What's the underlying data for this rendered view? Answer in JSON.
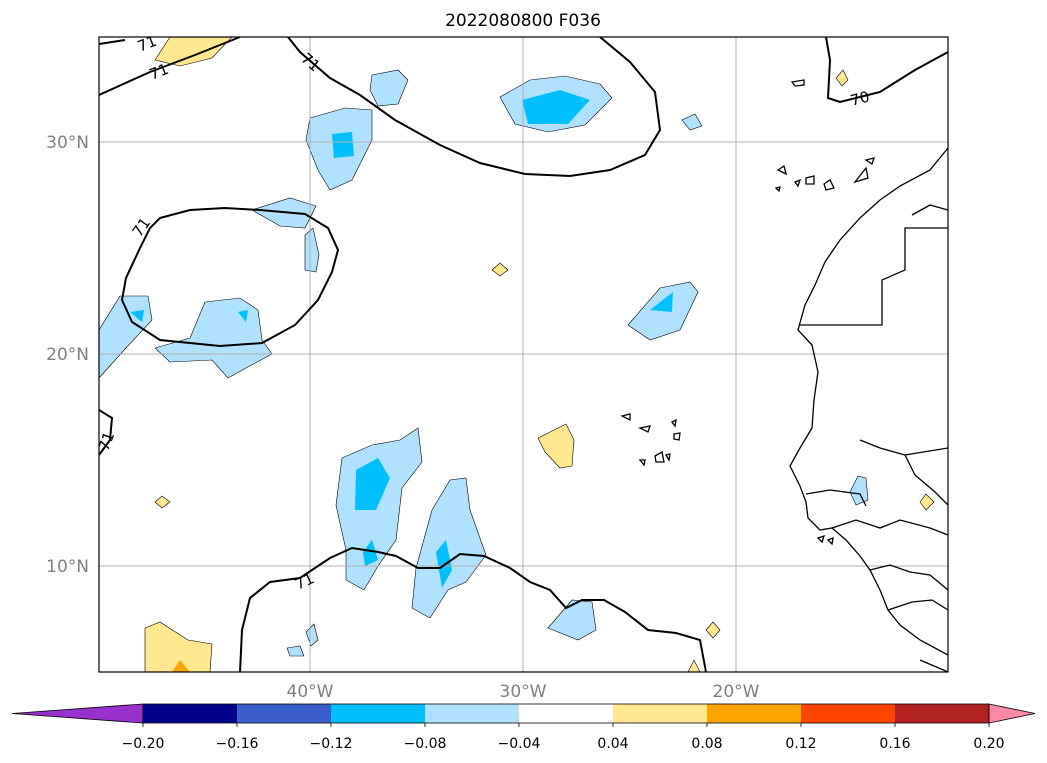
{
  "title": "2022080800 F036",
  "lat_labels": [
    {
      "id": "30n",
      "text": "30°N",
      "value": 30
    },
    {
      "id": "20n",
      "text": "20°N",
      "value": 20
    },
    {
      "id": "10n",
      "text": "10°N",
      "value": 10
    }
  ],
  "lon_labels": [
    {
      "id": "40w",
      "text": "40°W",
      "value": -40
    },
    {
      "id": "30w",
      "text": "30°W",
      "value": -30
    },
    {
      "id": "20w",
      "text": "20°W",
      "value": -20
    }
  ],
  "contour_labels": [
    {
      "id": "71a",
      "text": "71"
    },
    {
      "id": "71b",
      "text": "71"
    },
    {
      "id": "71c",
      "text": "71"
    },
    {
      "id": "71d",
      "text": "71"
    },
    {
      "id": "71e",
      "text": "71"
    },
    {
      "id": "71f",
      "text": "71"
    },
    {
      "id": "70a",
      "text": "70"
    }
  ],
  "colorbar": {
    "colors": [
      "#9932cc",
      "#00008b",
      "#3a5fcd",
      "#00bfff",
      "#b0e2ff",
      "#ffffff",
      "#ffe88f",
      "#ffa500",
      "#ff4500",
      "#b22222",
      "#ff8aa8"
    ],
    "ticks": [
      "−0.20",
      "−0.16",
      "−0.12",
      "−0.08",
      "−0.04",
      "0.04",
      "0.08",
      "0.12",
      "0.16",
      "0.20"
    ]
  },
  "colors": {
    "light_blue": "#b0e2ff",
    "deep_sky_blue": "#00bfff",
    "light_yellow": "#ffe88f",
    "orange": "#ffa500",
    "grid": "#b0b0b0",
    "tick_label": "#7f7f7f"
  }
}
